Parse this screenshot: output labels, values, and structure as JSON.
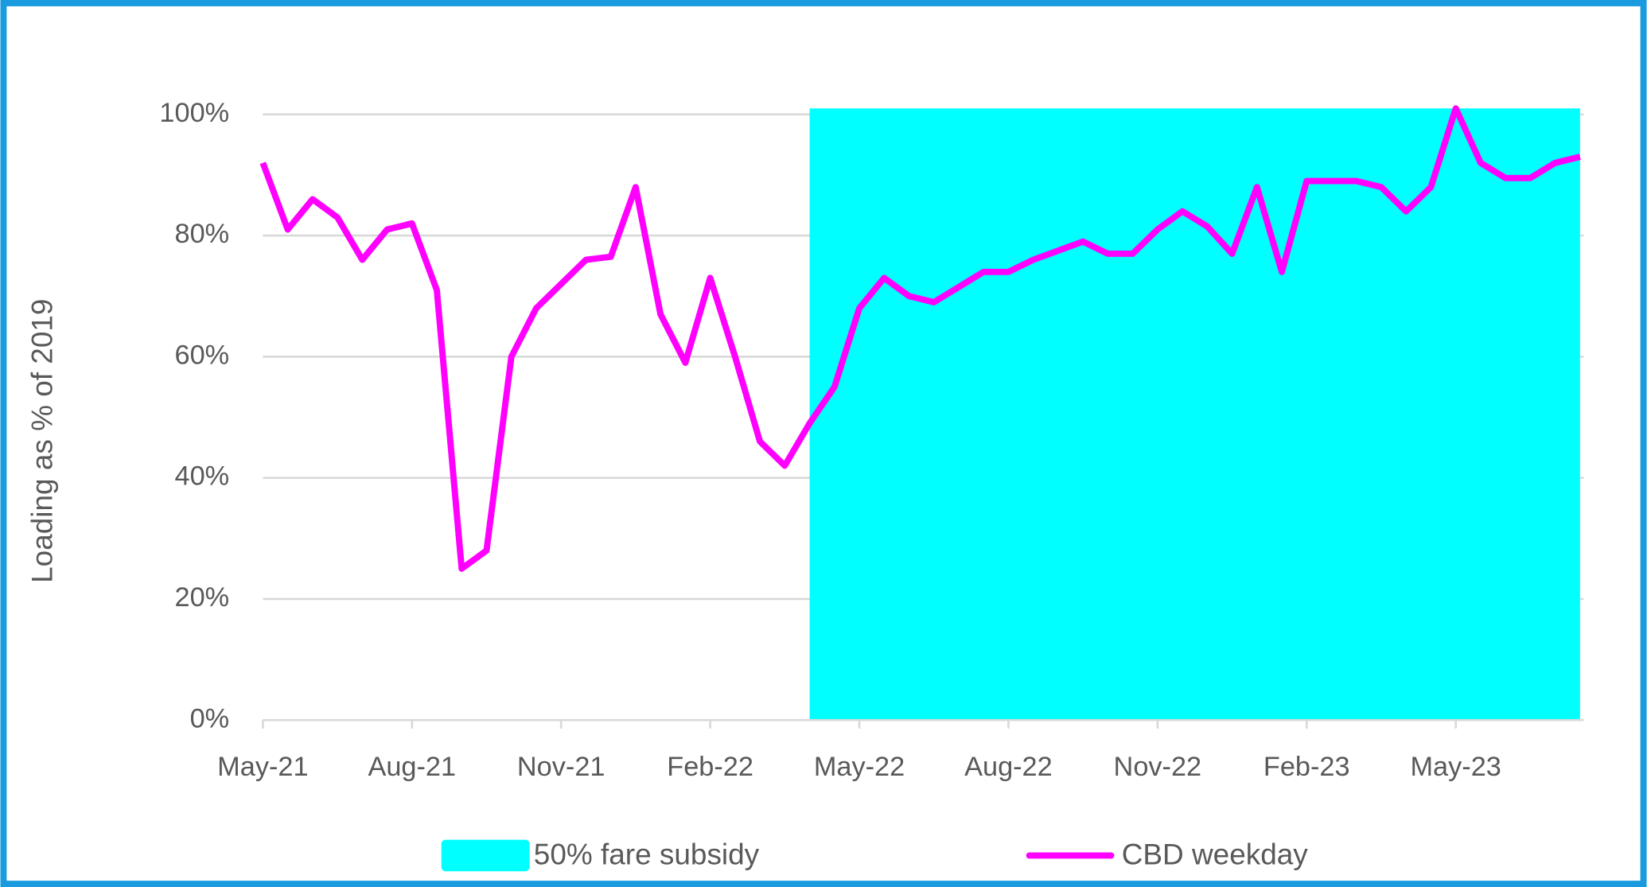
{
  "chart_data": {
    "type": "line",
    "y_label": "Loading as % of 2019",
    "categories": [
      "May-21",
      null,
      null,
      null,
      null,
      null,
      "Aug-21",
      null,
      null,
      null,
      null,
      null,
      "Nov-21",
      null,
      null,
      null,
      null,
      null,
      "Feb-22",
      null,
      null,
      null,
      null,
      null,
      "May-22",
      null,
      null,
      null,
      null,
      null,
      "Aug-22",
      null,
      null,
      null,
      null,
      null,
      "Nov-22",
      null,
      null,
      null,
      null,
      null,
      "Feb-23",
      null,
      null,
      null,
      null,
      null,
      "May-23",
      null,
      null,
      null,
      null,
      null
    ],
    "series": [
      {
        "name": "50% fare subsidy",
        "type": "area",
        "color": "#00ffff",
        "values": [
          null,
          null,
          null,
          null,
          null,
          null,
          null,
          null,
          null,
          null,
          null,
          null,
          null,
          null,
          null,
          null,
          null,
          null,
          null,
          null,
          null,
          null,
          101,
          101,
          101,
          101,
          101,
          101,
          101,
          101,
          101,
          101,
          101,
          101,
          101,
          101,
          101,
          101,
          101,
          101,
          101,
          101,
          101,
          101,
          101,
          101,
          101,
          101,
          101,
          101,
          101,
          101,
          101,
          101
        ]
      },
      {
        "name": "CBD weekday",
        "type": "line",
        "color": "#ff00ff",
        "values": [
          92,
          81,
          86,
          83,
          76,
          81,
          82,
          71,
          25,
          28,
          60,
          68,
          72,
          76,
          76.5,
          88,
          67,
          59,
          73,
          60,
          46,
          42,
          49,
          55,
          68,
          73,
          70,
          69,
          71.5,
          74,
          74,
          76,
          77.5,
          79,
          77,
          77,
          81,
          84,
          81.5,
          77,
          88,
          74,
          89,
          89,
          89,
          88,
          84,
          88,
          101,
          92,
          89.5,
          89.5,
          92,
          93
        ]
      }
    ],
    "ylim": [
      0,
      100
    ],
    "yticks": [
      {
        "value": 0,
        "label": "0%"
      },
      {
        "value": 20,
        "label": "20%"
      },
      {
        "value": 40,
        "label": "40%"
      },
      {
        "value": 60,
        "label": "60%"
      },
      {
        "value": 80,
        "label": "80%"
      },
      {
        "value": 100,
        "label": "100%"
      }
    ],
    "grid": true,
    "legend": "bottom"
  }
}
